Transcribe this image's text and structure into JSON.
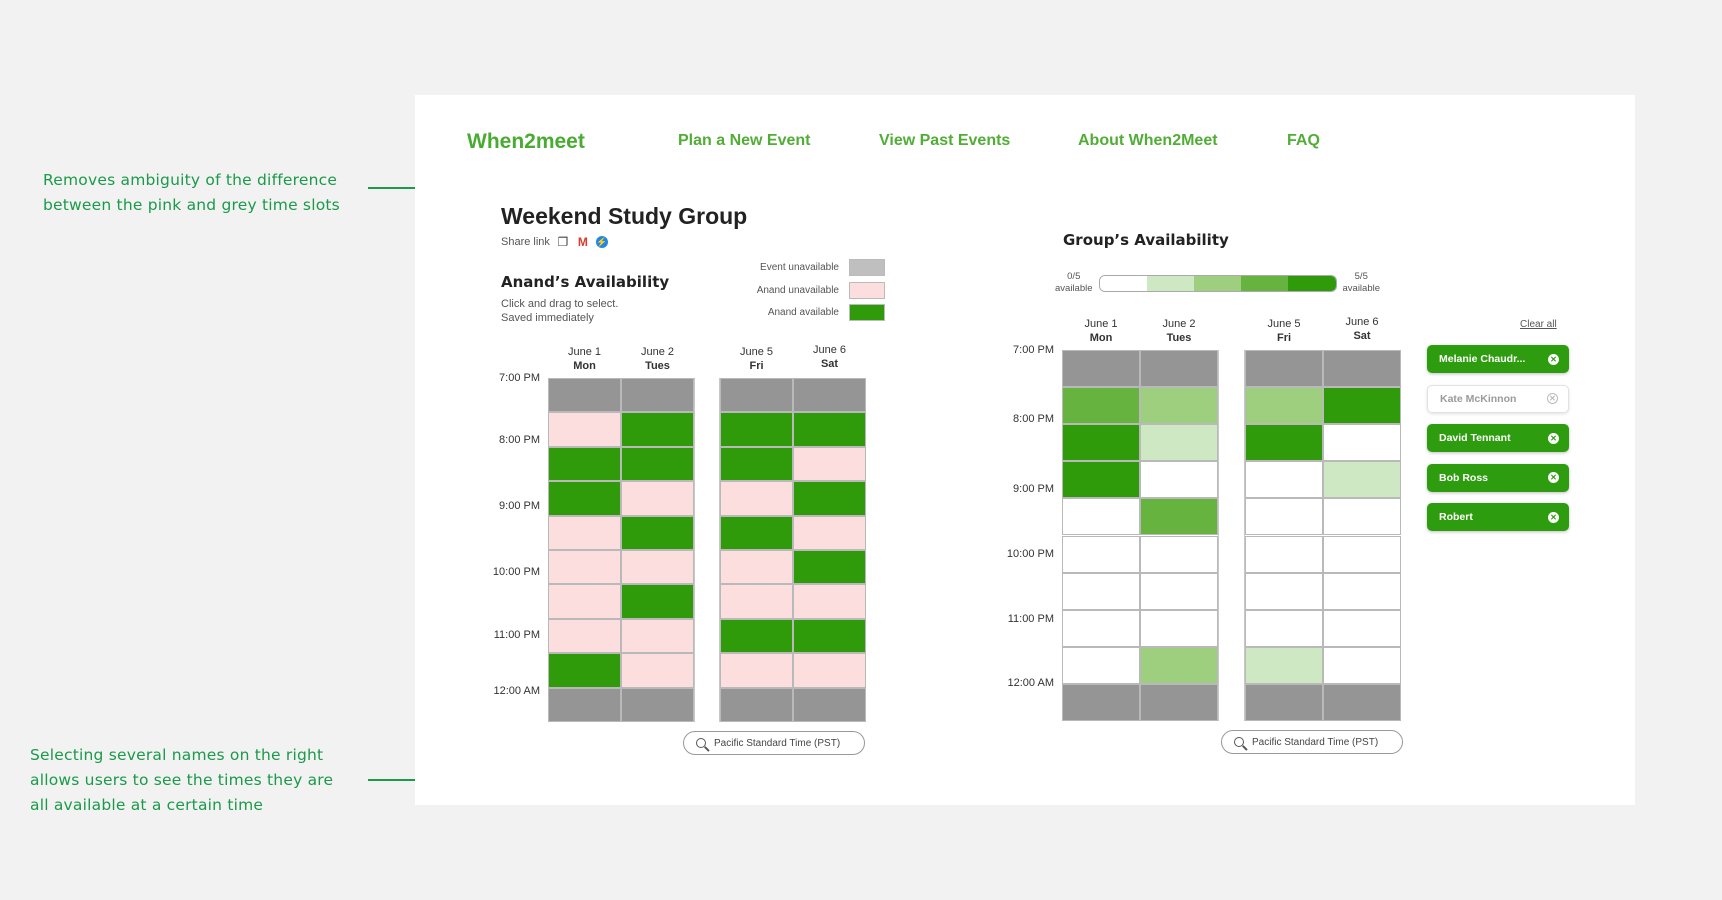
{
  "colors": {
    "event_unavailable": "#959595",
    "user_unavailable": "#fddede",
    "user_available": "#2f9a0a",
    "brand": "#4aab33",
    "annotation": "#1a9a4a",
    "scale": [
      "#ffffff",
      "#cfe8c4",
      "#9dcf7f",
      "#66b340",
      "#2f9a0a"
    ]
  },
  "annotations": {
    "top": "Removes ambiguity of the difference between the pink and grey time slots",
    "bottom": "Selecting several names on the right allows users to see the times they are all available at a certain time"
  },
  "nav": {
    "brand": "When2meet",
    "items": [
      "Plan a New Event",
      "View Past Events",
      "About When2Meet",
      "FAQ"
    ]
  },
  "event": {
    "title": "Weekend Study Group",
    "share_label": "Share link"
  },
  "legend": {
    "event_unavailable": "Event unavailable",
    "user_unavailable": "Anand unavailable",
    "user_available": "Anand available"
  },
  "personal": {
    "heading": "Anand’s Availability",
    "hint_line1": "Click and drag to select.",
    "hint_line2": "Saved immediately",
    "days": [
      {
        "date": "June 1",
        "day": "Mon"
      },
      {
        "date": "June 2",
        "day": "Tues"
      },
      {
        "date": "June 5",
        "day": "Fri"
      },
      {
        "date": "June 6",
        "day": "Sat"
      }
    ],
    "times": [
      "7:00 PM",
      "8:00 PM",
      "9:00 PM",
      "10:00 PM",
      "11:00 PM",
      "12:00 AM"
    ],
    "cells": [
      [
        "E",
        "E",
        "E",
        "E"
      ],
      [
        "U",
        "A",
        "A",
        "A"
      ],
      [
        "A",
        "A",
        "A",
        "U"
      ],
      [
        "A",
        "U",
        "U",
        "A"
      ],
      [
        "U",
        "A",
        "A",
        "U"
      ],
      [
        "U",
        "U",
        "U",
        "A"
      ],
      [
        "U",
        "A",
        "U",
        "U"
      ],
      [
        "U",
        "U",
        "A",
        "A"
      ],
      [
        "A",
        "U",
        "U",
        "U"
      ],
      [
        "E",
        "E",
        "E",
        "E"
      ]
    ],
    "timezone": "Pacific Standard Time (PST)"
  },
  "group": {
    "heading": "Group’s Availability",
    "scale_min": "0/5",
    "scale_max": "5/5",
    "scale_word": "available",
    "days": [
      {
        "date": "June 1",
        "day": "Mon"
      },
      {
        "date": "June 2",
        "day": "Tues"
      },
      {
        "date": "June 5",
        "day": "Fri"
      },
      {
        "date": "June 6",
        "day": "Sat"
      }
    ],
    "times": [
      "7:00 PM",
      "8:00 PM",
      "9:00 PM",
      "10:00 PM",
      "11:00 PM",
      "12:00 AM"
    ],
    "cells": [
      [
        "E",
        "E",
        "E",
        "E"
      ],
      [
        "3",
        "2",
        "2",
        "4"
      ],
      [
        "4",
        "1",
        "4",
        "0"
      ],
      [
        "4",
        "0",
        "0",
        "1"
      ],
      [
        "0",
        "3",
        "0",
        "0"
      ],
      [
        "0",
        "0",
        "0",
        "0"
      ],
      [
        "0",
        "0",
        "0",
        "0"
      ],
      [
        "0",
        "0",
        "0",
        "0"
      ],
      [
        "0",
        "2",
        "1",
        "0"
      ],
      [
        "E",
        "E",
        "E",
        "E"
      ]
    ],
    "timezone": "Pacific Standard Time (PST)",
    "clear_all": "Clear all",
    "people": [
      {
        "name": "Melanie Chaudr...",
        "selected": true
      },
      {
        "name": "Kate McKinnon",
        "selected": false
      },
      {
        "name": "David Tennant",
        "selected": true
      },
      {
        "name": "Bob Ross",
        "selected": true
      },
      {
        "name": "Robert",
        "selected": true
      }
    ]
  }
}
